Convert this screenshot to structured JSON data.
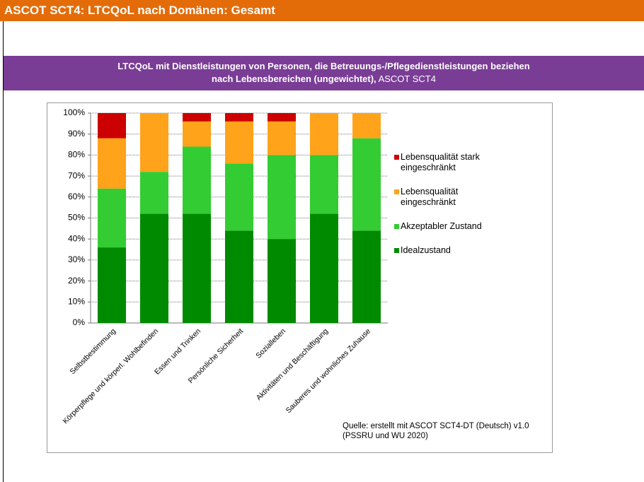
{
  "header": "ASCOT SCT4: LTCQoL nach Domänen: Gesamt",
  "banner": {
    "line1": "LTCQoL mit Dienstleistungen von Personen, die Betreuungs-/Pflegedienstleistungen beziehen",
    "line2": "nach Lebensbereichen (ungewichtet),",
    "line2_suffix": "ASCOT SCT4"
  },
  "chart_data": {
    "type": "stacked_bar",
    "categories": [
      "Selbstbestimmung",
      "Körperpflege und körperl. Wohlbefinden",
      "Essen und Trinken",
      "Persönliche Sicherheit",
      "Sozialleben",
      "Aktivitäten und Beschäftigung",
      "Sauberes und wohnliches Zuhause"
    ],
    "series": [
      {
        "name": "Idealzustand",
        "color": "#008a00",
        "values": [
          36,
          52,
          52,
          44,
          40,
          52,
          44
        ]
      },
      {
        "name": "Akzeptabler Zustand",
        "color": "#33cc33",
        "values": [
          28,
          20,
          32,
          32,
          40,
          28,
          44
        ]
      },
      {
        "name": "Lebensqualität eingeschränkt",
        "color": "#ffa31a",
        "values": [
          24,
          28,
          12,
          20,
          16,
          20,
          12
        ]
      },
      {
        "name": "Lebensqualität stark eingeschränkt",
        "color": "#cc0000",
        "values": [
          12,
          0,
          4,
          4,
          4,
          0,
          0
        ]
      }
    ],
    "ylim": [
      0,
      100
    ],
    "yticks": [
      {
        "value": 0,
        "label": "0%"
      },
      {
        "value": 10,
        "label": "10%"
      },
      {
        "value": 20,
        "label": "20%"
      },
      {
        "value": 30,
        "label": "30%"
      },
      {
        "value": 40,
        "label": "40%"
      },
      {
        "value": 50,
        "label": "50%"
      },
      {
        "value": 60,
        "label": "60%"
      },
      {
        "value": 70,
        "label": "70%"
      },
      {
        "value": 80,
        "label": "80%"
      },
      {
        "value": 90,
        "label": "90%"
      },
      {
        "value": 100,
        "label": "100%"
      }
    ],
    "grid": true,
    "legend": "right"
  },
  "source": "Quelle: erstellt mit ASCOT SCT4-DT (Deutsch) v1.0  (PSSRU und WU 2020)"
}
